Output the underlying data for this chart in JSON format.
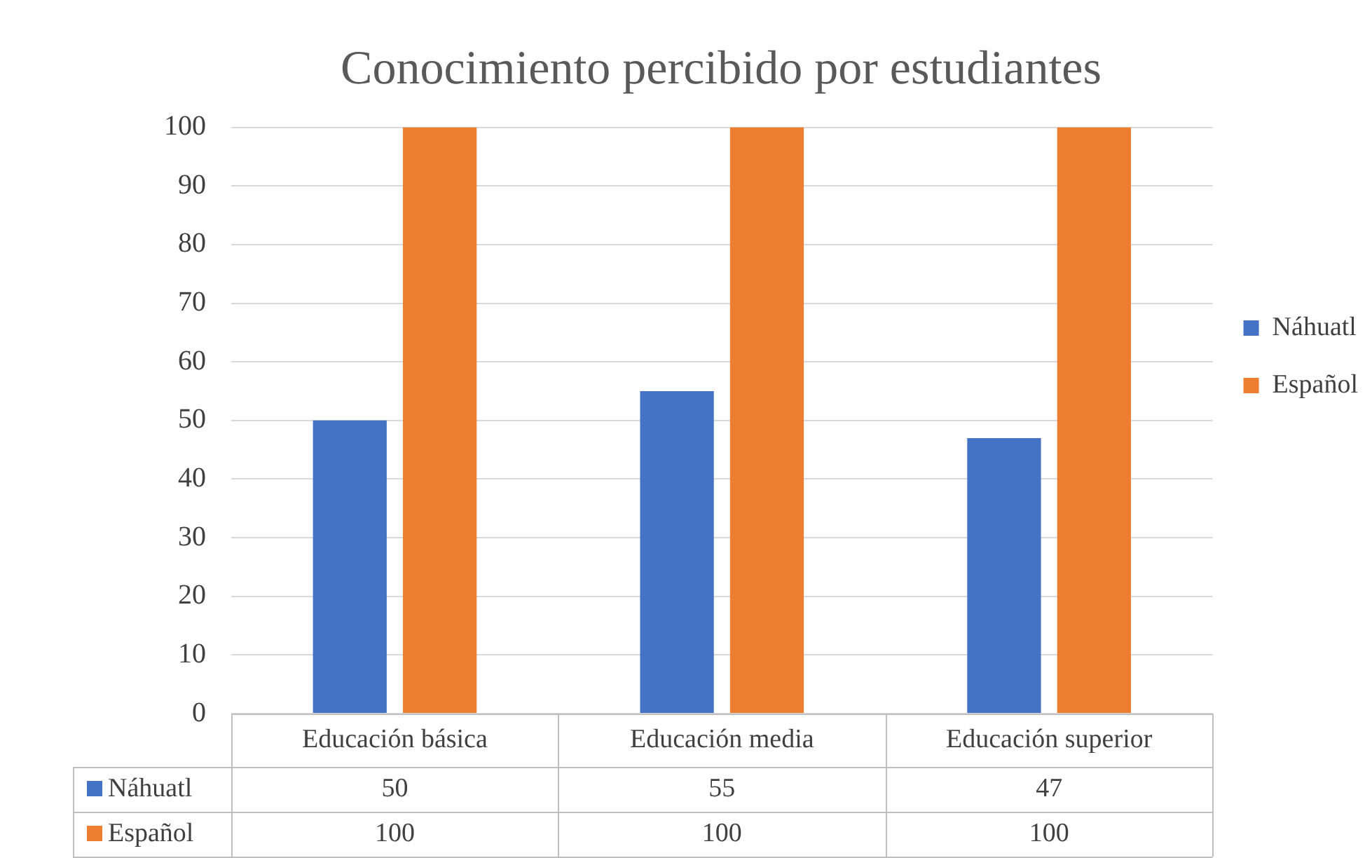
{
  "chart_data": {
    "type": "bar",
    "title": "Conocimiento percibido por estudiantes",
    "categories": [
      "Educación básica",
      "Educación media",
      "Educación superior"
    ],
    "series": [
      {
        "name": "Náhuatl",
        "color": "#4472c4",
        "values": [
          50,
          55,
          47
        ]
      },
      {
        "name": "Español",
        "color": "#ed7d31",
        "values": [
          100,
          100,
          100
        ]
      }
    ],
    "ylim": [
      0,
      100
    ],
    "yticks": [
      0,
      10,
      20,
      30,
      40,
      50,
      60,
      70,
      80,
      90,
      100
    ],
    "grid": "y",
    "legend": "right",
    "data_labels": true
  }
}
